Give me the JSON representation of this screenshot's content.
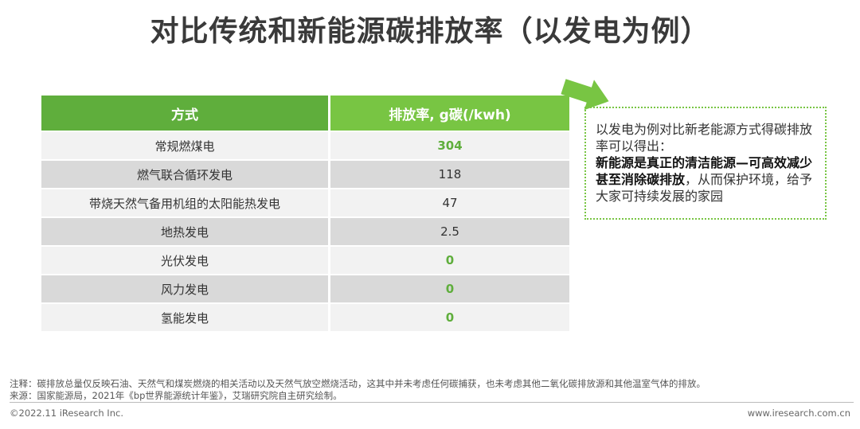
{
  "title": "对比传统和新能源碳排放率（以发电为例）",
  "table": {
    "headers": [
      "方式",
      "排放率, g碳(/kwh)"
    ],
    "rows": [
      {
        "method": "常规燃煤电",
        "value": "304",
        "highlight": true
      },
      {
        "method": "燃气联合循环发电",
        "value": "118",
        "highlight": false
      },
      {
        "method": "带烧天然气备用机组的太阳能热发电",
        "value": "47",
        "highlight": false
      },
      {
        "method": "地热发电",
        "value": "2.5",
        "highlight": false
      },
      {
        "method": "光伏发电",
        "value": "0",
        "highlight": true
      },
      {
        "method": "风力发电",
        "value": "0",
        "highlight": true
      },
      {
        "method": "氢能发电",
        "value": "0",
        "highlight": true
      }
    ]
  },
  "note": {
    "line1": "以发电为例对比新老能源方式得碳排放率可以得出：",
    "bold": "新能源是真正的清洁能源—可高效减少甚至消除碳排放",
    "rest": "，从而保护环境，给予大家可持续发展的家园"
  },
  "footnotes": {
    "note": "注释：碳排放总量仅反映石油、天然气和煤炭燃烧的相关活动以及天然气放空燃烧活动，这其中并未考虑任何碳捕获，也未考虑其他二氧化碳排放源和其他温室气体的排放。",
    "source": "来源：国家能源局，2021年《bp世界能源统计年鉴》，艾瑞研究院自主研究绘制。"
  },
  "copyright": "©2022.11 iResearch Inc.",
  "website": "www.iresearch.com.cn",
  "colors": {
    "green_dark": "#5fae3c",
    "green_light": "#78c543"
  }
}
